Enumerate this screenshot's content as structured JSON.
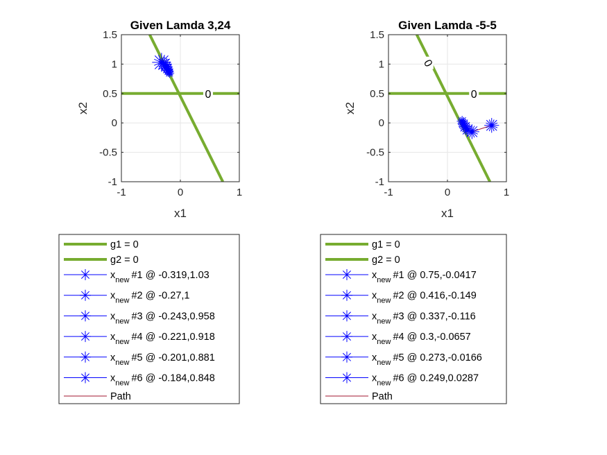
{
  "chart_data": [
    {
      "type": "scatter",
      "title": "Given Lamda 3,24",
      "xlabel": "x1",
      "ylabel": "x2",
      "xlim": [
        -1,
        1
      ],
      "ylim": [
        -1,
        1.5
      ],
      "xticks": [
        "-1",
        "0",
        "1"
      ],
      "yticks": [
        "-1",
        "-0.5",
        "0",
        "0.5",
        "1",
        "1.5"
      ],
      "grid": true,
      "colors": {
        "constraint": "#77ac30",
        "marker": "#0000ff",
        "path": "#a2142f"
      },
      "constraints": [
        {
          "name": "g1 = 0",
          "points": [
            [
              -0.52,
              1.5
            ],
            [
              0.72,
              -1.0
            ]
          ],
          "label": ""
        },
        {
          "name": "g2 = 0",
          "points": [
            [
              -1,
              0.5
            ],
            [
              1,
              0.5
            ]
          ],
          "label": "0",
          "label_at": [
            0.47,
            0.5
          ]
        }
      ],
      "series": [
        {
          "name": "#1 @ -0.319,1.03",
          "x": -0.319,
          "y": 1.03
        },
        {
          "name": "#2 @ -0.27,1",
          "x": -0.27,
          "y": 1.0
        },
        {
          "name": "#3 @ -0.243,0.958",
          "x": -0.243,
          "y": 0.958
        },
        {
          "name": "#4 @ -0.221,0.918",
          "x": -0.221,
          "y": 0.918
        },
        {
          "name": "#5 @ -0.201,0.881",
          "x": -0.201,
          "y": 0.881
        },
        {
          "name": "#6 @ -0.184,0.848",
          "x": -0.184,
          "y": 0.848
        }
      ],
      "marker_sizes": [
        0.32,
        0.25,
        0.22,
        0.2,
        0.18,
        0.16
      ],
      "legend": {
        "entries": [
          {
            "kind": "line",
            "label": "g1 = 0"
          },
          {
            "kind": "line",
            "label": "g2 = 0"
          },
          {
            "kind": "marker",
            "base": "x",
            "sub": "new",
            "label": "#1 @ -0.319,1.03"
          },
          {
            "kind": "marker",
            "base": "x",
            "sub": "new",
            "label": "#2 @ -0.27,1"
          },
          {
            "kind": "marker",
            "base": "x",
            "sub": "new",
            "label": "#3 @ -0.243,0.958"
          },
          {
            "kind": "marker",
            "base": "x",
            "sub": "new",
            "label": "#4 @ -0.221,0.918"
          },
          {
            "kind": "marker",
            "base": "x",
            "sub": "new",
            "label": "#5 @ -0.201,0.881"
          },
          {
            "kind": "marker",
            "base": "x",
            "sub": "new",
            "label": "#6 @ -0.184,0.848"
          },
          {
            "kind": "path",
            "label": "Path"
          }
        ]
      }
    },
    {
      "type": "scatter",
      "title": "Given Lamda -5-5",
      "xlabel": "x1",
      "ylabel": "x2",
      "xlim": [
        -1,
        1
      ],
      "ylim": [
        -1,
        1.5
      ],
      "xticks": [
        "-1",
        "0",
        "1"
      ],
      "yticks": [
        "-1",
        "-0.5",
        "0",
        "0.5",
        "1",
        "1.5"
      ],
      "grid": true,
      "colors": {
        "constraint": "#77ac30",
        "marker": "#0000ff",
        "path": "#a2142f"
      },
      "constraints": [
        {
          "name": "g1 = 0",
          "points": [
            [
              -0.52,
              1.5
            ],
            [
              0.72,
              -1.0
            ]
          ],
          "label": "0",
          "label_at": [
            -0.32,
            1.02
          ]
        },
        {
          "name": "g2 = 0",
          "points": [
            [
              -1,
              0.5
            ],
            [
              1,
              0.5
            ]
          ],
          "label": "0",
          "label_at": [
            0.45,
            0.5
          ]
        }
      ],
      "series": [
        {
          "name": "#1 @ 0.75,-0.0417",
          "x": 0.75,
          "y": -0.0417
        },
        {
          "name": "#2 @ 0.416,-0.149",
          "x": 0.416,
          "y": -0.149
        },
        {
          "name": "#3 @ 0.337,-0.116",
          "x": 0.337,
          "y": -0.116
        },
        {
          "name": "#4 @ 0.3,-0.0657",
          "x": 0.3,
          "y": -0.0657
        },
        {
          "name": "#5 @ 0.273,-0.0166",
          "x": 0.273,
          "y": -0.0166
        },
        {
          "name": "#6 @ 0.249,0.0287",
          "x": 0.249,
          "y": 0.0287
        }
      ],
      "marker_sizes": [
        0.25,
        0.25,
        0.22,
        0.22,
        0.2,
        0.18
      ],
      "legend": {
        "entries": [
          {
            "kind": "line",
            "label": "g1 = 0"
          },
          {
            "kind": "line",
            "label": "g2 = 0"
          },
          {
            "kind": "marker",
            "base": "x",
            "sub": "new",
            "label": "#1 @ 0.75,-0.0417"
          },
          {
            "kind": "marker",
            "base": "x",
            "sub": "new",
            "label": "#2 @ 0.416,-0.149"
          },
          {
            "kind": "marker",
            "base": "x",
            "sub": "new",
            "label": "#3 @ 0.337,-0.116"
          },
          {
            "kind": "marker",
            "base": "x",
            "sub": "new",
            "label": "#4 @ 0.3,-0.0657"
          },
          {
            "kind": "marker",
            "base": "x",
            "sub": "new",
            "label": "#5 @ 0.273,-0.0166"
          },
          {
            "kind": "marker",
            "base": "x",
            "sub": "new",
            "label": "#6 @ 0.249,0.0287"
          },
          {
            "kind": "path",
            "label": "Path"
          }
        ]
      }
    }
  ]
}
